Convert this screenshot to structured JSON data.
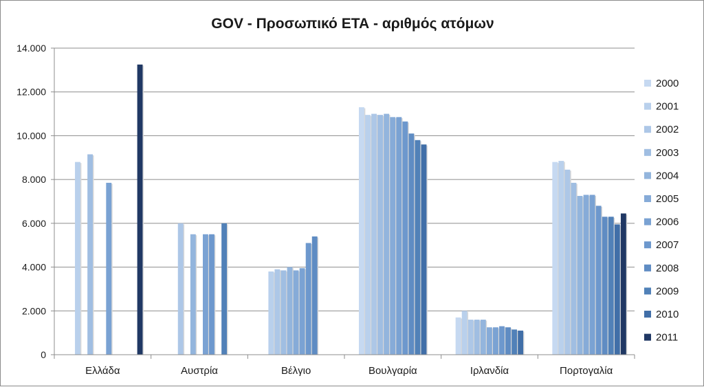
{
  "chart_data": {
    "type": "bar",
    "title": "GOV - Προσωπικό ΕΤΑ - αριθμός ατόμων",
    "xlabel": "",
    "ylabel": "",
    "ylim": [
      0,
      14000
    ],
    "yticks": [
      "0",
      "2.000",
      "4.000",
      "6.000",
      "8.000",
      "10.000",
      "12.000",
      "14.000"
    ],
    "ytick_values": [
      0,
      2000,
      4000,
      6000,
      8000,
      10000,
      12000,
      14000
    ],
    "grid": true,
    "legend_position": "right",
    "categories": [
      "Ελλάδα",
      "Αυστρία",
      "Βέλγιο",
      "Βουλγαρία",
      "Ιρλανδία",
      "Πορτογαλία"
    ],
    "series": [
      {
        "name": "2000",
        "color": "#c6d9f1",
        "values": [
          null,
          null,
          null,
          11300,
          1700,
          8800
        ]
      },
      {
        "name": "2001",
        "color": "#b9d0ec",
        "values": [
          8800,
          null,
          3800,
          10950,
          2000,
          8850
        ]
      },
      {
        "name": "2002",
        "color": "#adc7e7",
        "values": [
          null,
          6000,
          3900,
          11000,
          1600,
          8450
        ]
      },
      {
        "name": "2003",
        "color": "#a0bee2",
        "values": [
          9150,
          null,
          3850,
          10950,
          1600,
          7850
        ]
      },
      {
        "name": "2004",
        "color": "#93b5dd",
        "values": [
          null,
          5500,
          4000,
          11000,
          1600,
          7250
        ]
      },
      {
        "name": "2005",
        "color": "#86abd8",
        "values": [
          null,
          null,
          3850,
          10850,
          1250,
          7300
        ]
      },
      {
        "name": "2006",
        "color": "#7aa2d3",
        "values": [
          7850,
          5500,
          3950,
          10850,
          1250,
          7300
        ]
      },
      {
        "name": "2007",
        "color": "#6d98cd",
        "values": [
          null,
          5500,
          5100,
          10650,
          1300,
          6800
        ]
      },
      {
        "name": "2008",
        "color": "#5f8cc3",
        "values": [
          null,
          null,
          5400,
          10100,
          1250,
          6300
        ]
      },
      {
        "name": "2009",
        "color": "#5181b8",
        "values": [
          null,
          6000,
          null,
          9800,
          1150,
          6300
        ]
      },
      {
        "name": "2010",
        "color": "#416fa8",
        "values": [
          null,
          null,
          null,
          9600,
          1100,
          5950
        ]
      },
      {
        "name": "2011",
        "color": "#203864",
        "values": [
          13250,
          null,
          null,
          null,
          null,
          6450
        ]
      }
    ]
  }
}
